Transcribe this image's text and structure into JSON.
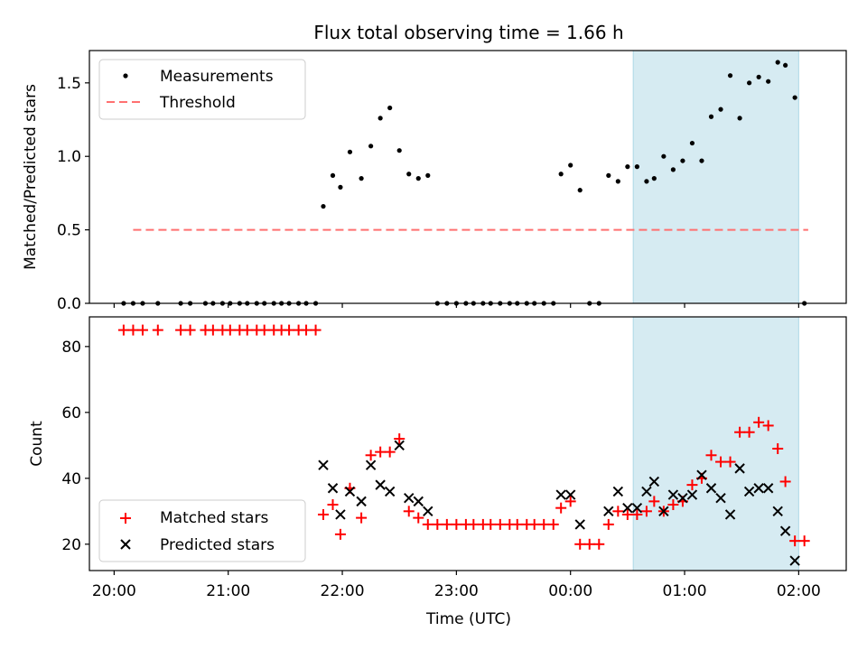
{
  "figure": {
    "title": "Flux total observing time = 1.66 h",
    "xlabel": "Time (UTC)"
  },
  "chart_data": [
    {
      "type": "scatter",
      "panel": "top",
      "ylabel": "Matched/Predicted stars",
      "xlim": [
        "19:47",
        "02:25"
      ],
      "ylim": [
        0,
        1.72
      ],
      "yticks": [
        0.0,
        0.5,
        1.0,
        1.5
      ],
      "ytick_labels": [
        "0.0",
        "0.5",
        "1.0",
        "1.5"
      ],
      "legend_position": "top-left",
      "highlight": {
        "x_start": "00:33",
        "x_end": "02:00",
        "color": "#add8e6"
      },
      "series": [
        {
          "name": "Measurements",
          "marker": "dot",
          "color": "#000000",
          "points": [
            [
              "20:05",
              0
            ],
            [
              "20:10",
              0
            ],
            [
              "20:15",
              0
            ],
            [
              "20:23",
              0
            ],
            [
              "20:35",
              0
            ],
            [
              "20:40",
              0
            ],
            [
              "20:48",
              0
            ],
            [
              "20:52",
              0
            ],
            [
              "20:57",
              0
            ],
            [
              "21:01",
              0
            ],
            [
              "21:06",
              0
            ],
            [
              "21:10",
              0
            ],
            [
              "21:15",
              0
            ],
            [
              "21:19",
              0
            ],
            [
              "21:24",
              0
            ],
            [
              "21:28",
              0
            ],
            [
              "21:32",
              0
            ],
            [
              "21:37",
              0
            ],
            [
              "21:41",
              0
            ],
            [
              "21:46",
              0
            ],
            [
              "21:50",
              0.66
            ],
            [
              "21:55",
              0.87
            ],
            [
              "21:59",
              0.79
            ],
            [
              "22:04",
              1.03
            ],
            [
              "22:10",
              0.85
            ],
            [
              "22:15",
              1.07
            ],
            [
              "22:20",
              1.26
            ],
            [
              "22:25",
              1.33
            ],
            [
              "22:30",
              1.04
            ],
            [
              "22:35",
              0.88
            ],
            [
              "22:40",
              0.85
            ],
            [
              "22:45",
              0.87
            ],
            [
              "22:50",
              0
            ],
            [
              "22:55",
              0
            ],
            [
              "23:00",
              0
            ],
            [
              "23:05",
              0
            ],
            [
              "23:09",
              0
            ],
            [
              "23:14",
              0
            ],
            [
              "23:18",
              0
            ],
            [
              "23:23",
              0
            ],
            [
              "23:28",
              0
            ],
            [
              "23:32",
              0
            ],
            [
              "23:37",
              0
            ],
            [
              "23:41",
              0
            ],
            [
              "23:46",
              0
            ],
            [
              "23:51",
              0
            ],
            [
              "23:55",
              0.88
            ],
            [
              "00:00",
              0.94
            ],
            [
              "00:05",
              0.77
            ],
            [
              "00:10",
              0
            ],
            [
              "00:15",
              0
            ],
            [
              "00:20",
              0.87
            ],
            [
              "00:25",
              0.83
            ],
            [
              "00:30",
              0.93
            ],
            [
              "00:35",
              0.93
            ],
            [
              "00:40",
              0.83
            ],
            [
              "00:44",
              0.85
            ],
            [
              "00:49",
              1.0
            ],
            [
              "00:54",
              0.91
            ],
            [
              "00:59",
              0.97
            ],
            [
              "01:04",
              1.09
            ],
            [
              "01:09",
              0.97
            ],
            [
              "01:14",
              1.27
            ],
            [
              "01:19",
              1.32
            ],
            [
              "01:24",
              1.55
            ],
            [
              "01:29",
              1.26
            ],
            [
              "01:34",
              1.5
            ],
            [
              "01:39",
              1.54
            ],
            [
              "01:44",
              1.51
            ],
            [
              "01:49",
              1.64
            ],
            [
              "01:53",
              1.62
            ],
            [
              "01:58",
              1.4
            ],
            [
              "02:03",
              0
            ]
          ]
        },
        {
          "name": "Threshold",
          "marker": "dashed-line",
          "color": "#ff7070",
          "points": [
            [
              "20:10",
              0.5
            ],
            [
              "02:05",
              0.5
            ]
          ]
        }
      ]
    },
    {
      "type": "scatter",
      "panel": "bottom",
      "ylabel": "Count",
      "xlim": [
        "19:47",
        "02:25"
      ],
      "ylim": [
        12,
        89
      ],
      "yticks": [
        20,
        40,
        60,
        80
      ],
      "ytick_labels": [
        "20",
        "40",
        "60",
        "80"
      ],
      "xticks": [
        "20:00",
        "21:00",
        "22:00",
        "23:00",
        "00:00",
        "01:00",
        "02:00"
      ],
      "xtick_labels": [
        "20:00",
        "21:00",
        "22:00",
        "23:00",
        "00:00",
        "01:00",
        "02:00"
      ],
      "legend_position": "bottom-left",
      "highlight": {
        "x_start": "00:33",
        "x_end": "02:00",
        "color": "#add8e6"
      },
      "series": [
        {
          "name": "Matched stars",
          "marker": "plus",
          "color": "#ff0000",
          "points": [
            [
              "20:05",
              85
            ],
            [
              "20:10",
              85
            ],
            [
              "20:15",
              85
            ],
            [
              "20:23",
              85
            ],
            [
              "20:35",
              85
            ],
            [
              "20:40",
              85
            ],
            [
              "20:48",
              85
            ],
            [
              "20:52",
              85
            ],
            [
              "20:57",
              85
            ],
            [
              "21:01",
              85
            ],
            [
              "21:06",
              85
            ],
            [
              "21:10",
              85
            ],
            [
              "21:15",
              85
            ],
            [
              "21:19",
              85
            ],
            [
              "21:24",
              85
            ],
            [
              "21:28",
              85
            ],
            [
              "21:32",
              85
            ],
            [
              "21:37",
              85
            ],
            [
              "21:41",
              85
            ],
            [
              "21:46",
              85
            ],
            [
              "21:50",
              29
            ],
            [
              "21:55",
              32
            ],
            [
              "21:59",
              23
            ],
            [
              "22:04",
              37
            ],
            [
              "22:10",
              28
            ],
            [
              "22:15",
              47
            ],
            [
              "22:20",
              48
            ],
            [
              "22:25",
              48
            ],
            [
              "22:30",
              52
            ],
            [
              "22:35",
              30
            ],
            [
              "22:40",
              28
            ],
            [
              "22:45",
              26
            ],
            [
              "22:50",
              26
            ],
            [
              "22:55",
              26
            ],
            [
              "23:00",
              26
            ],
            [
              "23:05",
              26
            ],
            [
              "23:09",
              26
            ],
            [
              "23:14",
              26
            ],
            [
              "23:18",
              26
            ],
            [
              "23:23",
              26
            ],
            [
              "23:28",
              26
            ],
            [
              "23:32",
              26
            ],
            [
              "23:37",
              26
            ],
            [
              "23:41",
              26
            ],
            [
              "23:46",
              26
            ],
            [
              "23:51",
              26
            ],
            [
              "23:55",
              31
            ],
            [
              "00:00",
              33
            ],
            [
              "00:05",
              20
            ],
            [
              "00:10",
              20
            ],
            [
              "00:15",
              20
            ],
            [
              "00:20",
              26
            ],
            [
              "00:25",
              30
            ],
            [
              "00:30",
              29
            ],
            [
              "00:35",
              29
            ],
            [
              "00:40",
              30
            ],
            [
              "00:44",
              33
            ],
            [
              "00:49",
              30
            ],
            [
              "00:54",
              32
            ],
            [
              "00:59",
              33
            ],
            [
              "01:04",
              38
            ],
            [
              "01:09",
              40
            ],
            [
              "01:14",
              47
            ],
            [
              "01:19",
              45
            ],
            [
              "01:24",
              45
            ],
            [
              "01:29",
              54
            ],
            [
              "01:34",
              54
            ],
            [
              "01:39",
              57
            ],
            [
              "01:44",
              56
            ],
            [
              "01:49",
              49
            ],
            [
              "01:53",
              39
            ],
            [
              "01:58",
              21
            ],
            [
              "02:03",
              21
            ]
          ]
        },
        {
          "name": "Predicted stars",
          "marker": "x",
          "color": "#000000",
          "points": [
            [
              "21:50",
              44
            ],
            [
              "21:55",
              37
            ],
            [
              "21:59",
              29
            ],
            [
              "22:04",
              36
            ],
            [
              "22:10",
              33
            ],
            [
              "22:15",
              44
            ],
            [
              "22:20",
              38
            ],
            [
              "22:25",
              36
            ],
            [
              "22:30",
              50
            ],
            [
              "22:35",
              34
            ],
            [
              "22:40",
              33
            ],
            [
              "22:45",
              30
            ],
            [
              "23:55",
              35
            ],
            [
              "00:00",
              35
            ],
            [
              "00:05",
              26
            ],
            [
              "00:20",
              30
            ],
            [
              "00:25",
              36
            ],
            [
              "00:30",
              31
            ],
            [
              "00:35",
              31
            ],
            [
              "00:40",
              36
            ],
            [
              "00:44",
              39
            ],
            [
              "00:49",
              30
            ],
            [
              "00:54",
              35
            ],
            [
              "00:59",
              34
            ],
            [
              "01:04",
              35
            ],
            [
              "01:09",
              41
            ],
            [
              "01:14",
              37
            ],
            [
              "01:19",
              34
            ],
            [
              "01:24",
              29
            ],
            [
              "01:29",
              43
            ],
            [
              "01:34",
              36
            ],
            [
              "01:39",
              37
            ],
            [
              "01:44",
              37
            ],
            [
              "01:49",
              30
            ],
            [
              "01:53",
              24
            ],
            [
              "01:58",
              15
            ]
          ]
        }
      ]
    }
  ]
}
